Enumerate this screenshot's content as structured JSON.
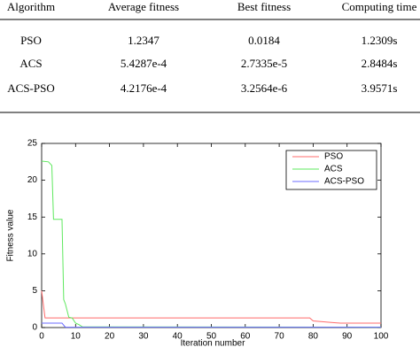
{
  "table": {
    "header": [
      "Algorithm",
      "Average fitness",
      "Best fitness",
      "Computing time"
    ],
    "rows": [
      [
        "PSO",
        "1.2347",
        "0.0184",
        "1.2309s"
      ],
      [
        "ACS",
        "5.4287e-4",
        "2.7335e-5",
        "2.8484s"
      ],
      [
        "ACS-PSO",
        "4.2176e-4",
        "3.2564e-6",
        "3.9571s"
      ]
    ]
  },
  "chart_data": {
    "type": "line",
    "xlabel": "Iteration number",
    "ylabel": "Fitness value",
    "xlim": [
      0,
      100
    ],
    "xticks": [
      0,
      10,
      20,
      30,
      40,
      50,
      60,
      70,
      80,
      90,
      100
    ],
    "ylim": [
      0,
      25
    ],
    "yticks": [
      0,
      5,
      10,
      15,
      20,
      25
    ],
    "grid": false,
    "legend": "upper right",
    "series": [
      {
        "name": "PSO",
        "color": "#ff6b6b",
        "x": [
          0,
          1,
          2,
          79,
          80,
          85,
          88,
          100
        ],
        "values": [
          5,
          1.3,
          1.3,
          1.3,
          0.9,
          0.7,
          0.6,
          0.6
        ]
      },
      {
        "name": "ACS",
        "color": "#5ee85e",
        "x": [
          0,
          2,
          3,
          3.5,
          6,
          6.5,
          7,
          8,
          9,
          10,
          11,
          12,
          100
        ],
        "values": [
          22.6,
          22.5,
          22,
          14.7,
          14.7,
          3.8,
          3.2,
          1.4,
          1.3,
          0.6,
          0.4,
          0.1,
          0.05
        ]
      },
      {
        "name": "ACS-PSO",
        "color": "#6b6bff",
        "x": [
          0,
          6,
          7,
          100
        ],
        "values": [
          0.6,
          0.6,
          0.05,
          0.05
        ]
      }
    ]
  }
}
